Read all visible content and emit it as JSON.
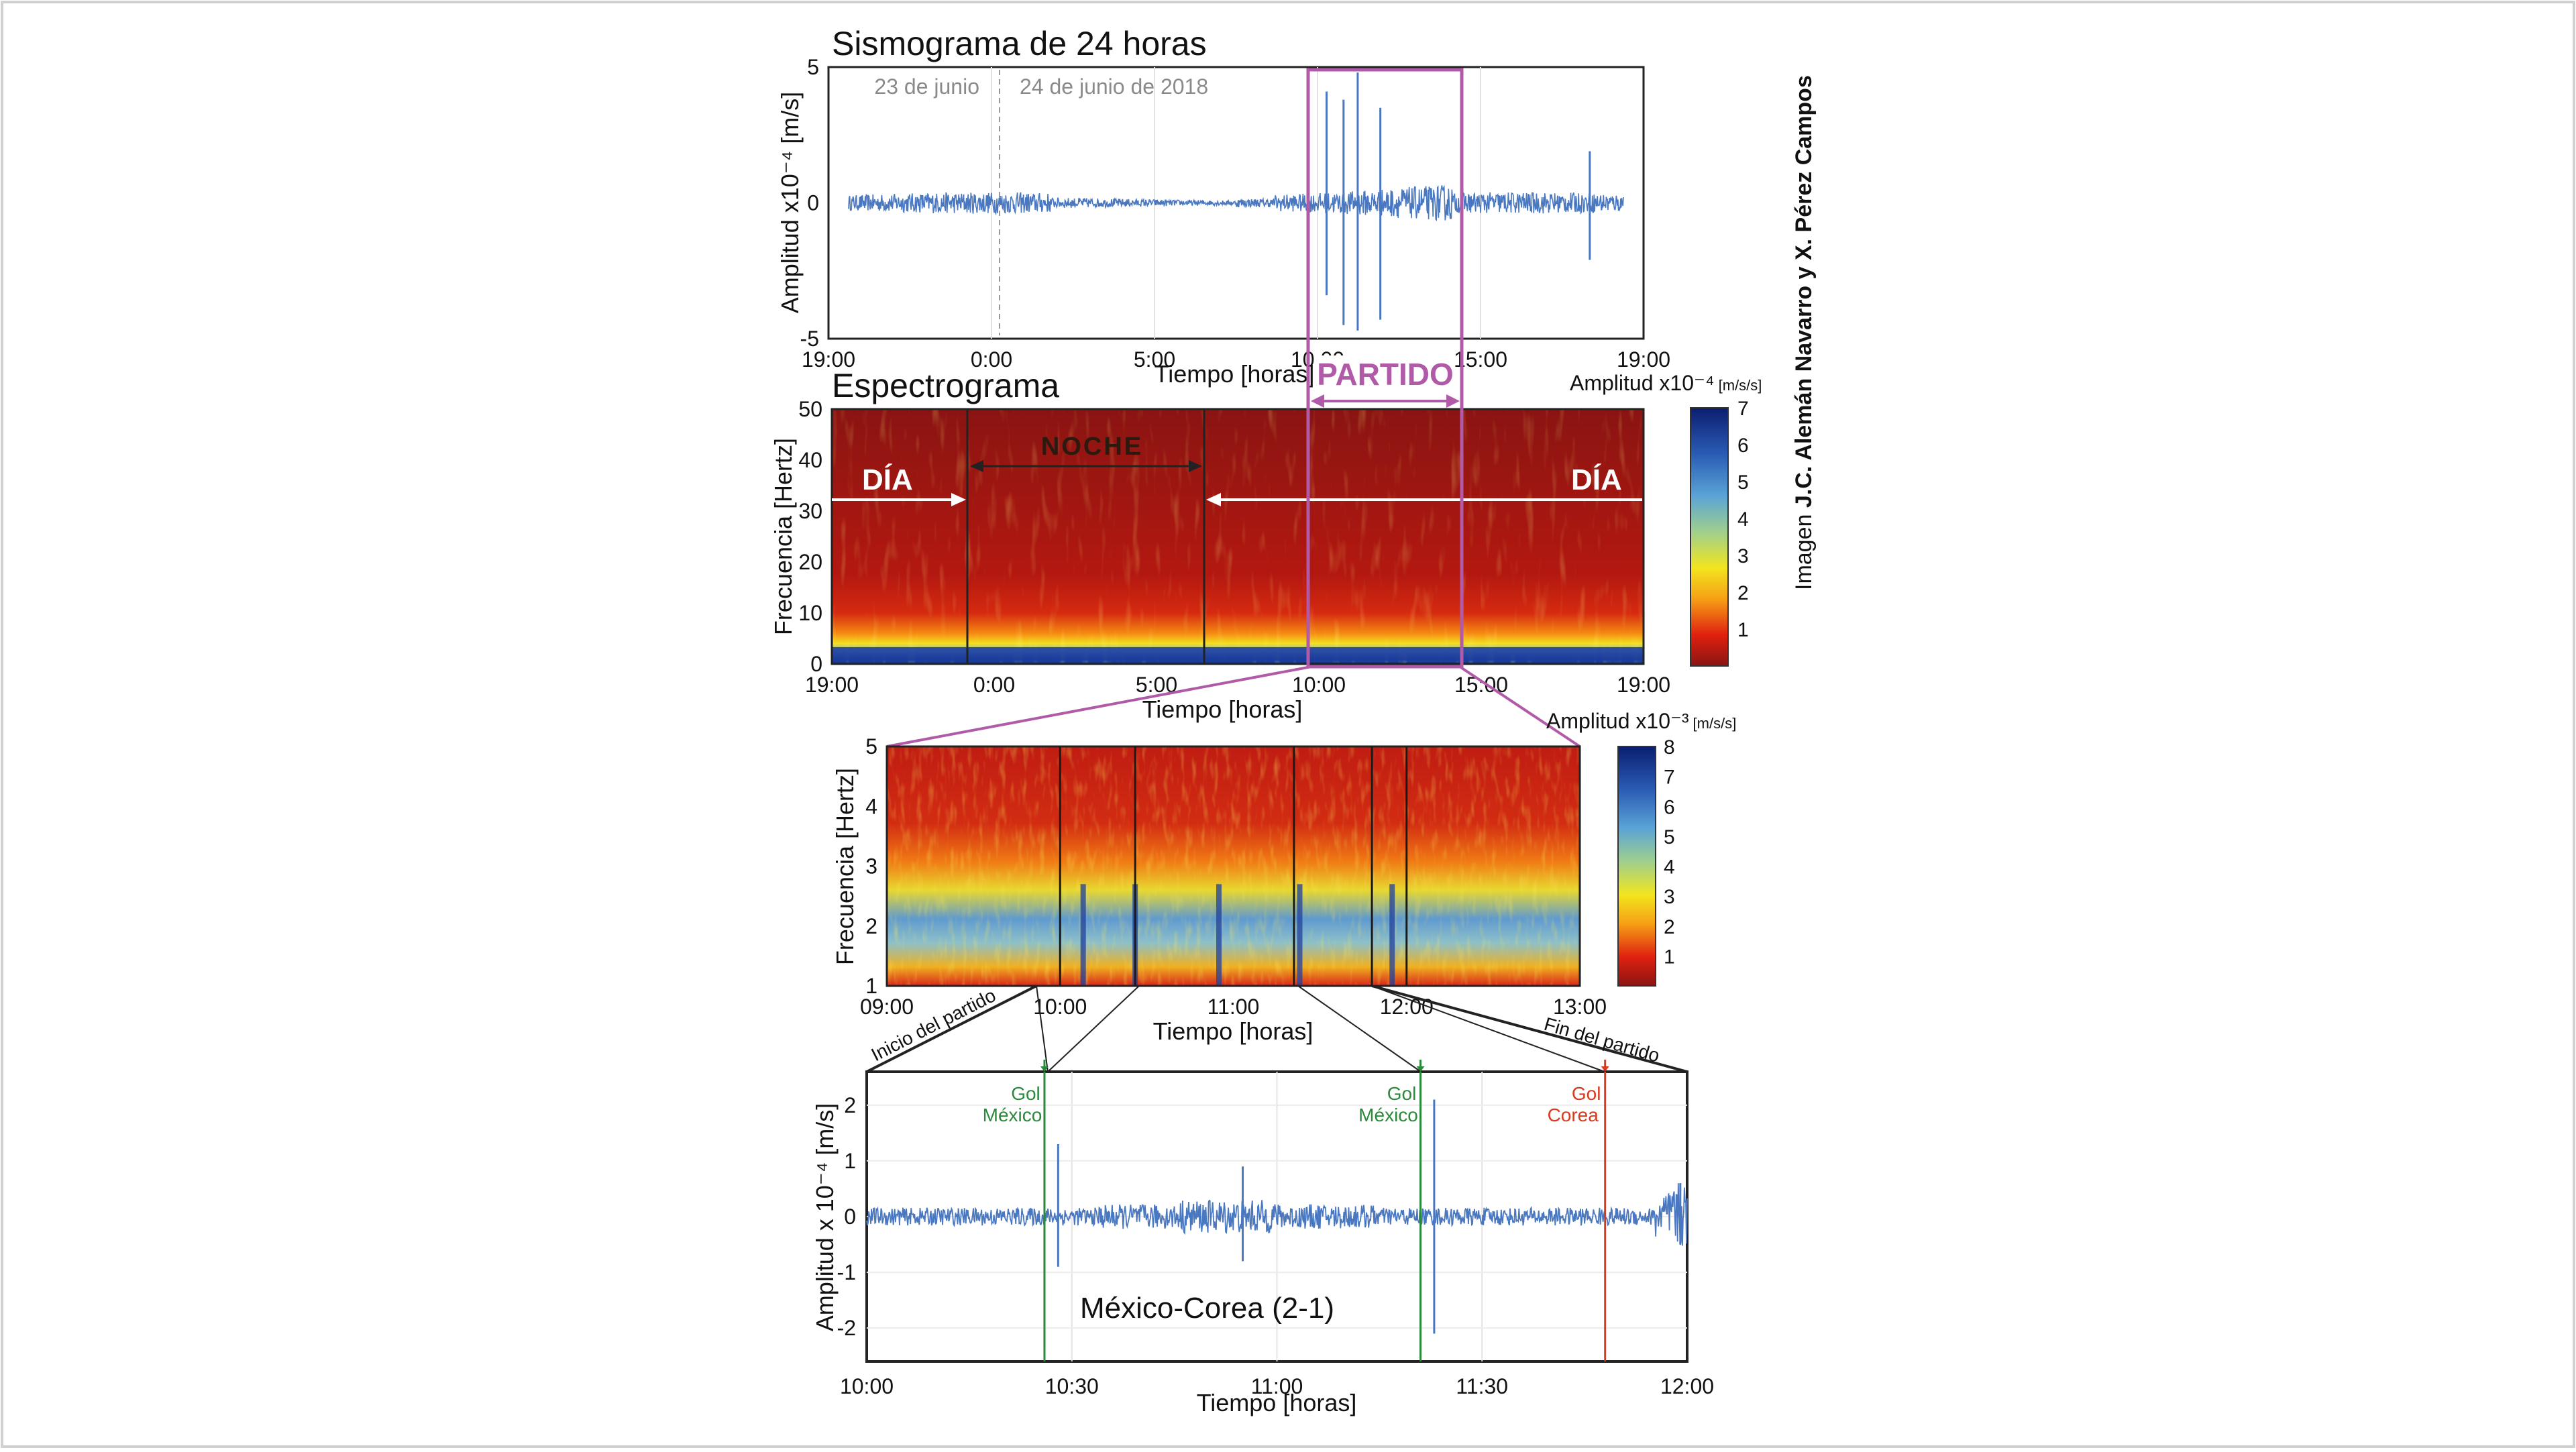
{
  "credit": {
    "prefix": "Imagen",
    "authors": "J.C. Alemán Navarro y X. Pérez Campos"
  },
  "colors": {
    "trace": "#4a78c0",
    "partido": "#b05aa8",
    "gol_mexico": "#2a8a3a",
    "gol_corea": "#d83a20",
    "frame": "#222222"
  },
  "chart_data": [
    {
      "type": "line",
      "title": "Sismograma de 24 horas",
      "xlabel": "Tiempo [horas]",
      "ylabel": "Amplitud x10⁻⁴ [m/s]",
      "xticks": [
        "19:00",
        "0:00",
        "5:00",
        "10:00",
        "15:00",
        "19:00"
      ],
      "yticks": [
        "5",
        "0",
        "-5"
      ],
      "ylim": [
        -5,
        5
      ],
      "annotations": {
        "day1": "23 de junio",
        "day2": "24 de junio de 2018",
        "partido": "PARTIDO"
      },
      "spikes": [
        {
          "x": "9:40",
          "y": [
            -3.4,
            4.1
          ]
        },
        {
          "x": "10:10",
          "y": [
            -4.5,
            3.8
          ]
        },
        {
          "x": "10:35",
          "y": [
            -4.7,
            4.8
          ]
        },
        {
          "x": "11:15",
          "y": [
            -4.3,
            3.5
          ]
        },
        {
          "x": "17:25",
          "y": [
            -2.1,
            1.9
          ]
        }
      ]
    },
    {
      "type": "heatmap",
      "title": "Espectrograma",
      "xlabel": "Tiempo [horas]",
      "ylabel": "Frecuencia [Hertz]",
      "xticks": [
        "19:00",
        "0:00",
        "5:00",
        "10:00",
        "15:00",
        "19:00"
      ],
      "yticks": [
        "50",
        "40",
        "30",
        "20",
        "10",
        "0"
      ],
      "ylim": [
        0,
        50
      ],
      "colorbar": {
        "label": "Amplitud x10⁻⁴",
        "unit": "[m/s/s]",
        "ticks": [
          "7",
          "6",
          "5",
          "4",
          "3",
          "2",
          "1"
        ],
        "range": [
          0,
          7
        ]
      },
      "annotations": {
        "dia_left": "DÍA",
        "noche": "NOCHE",
        "dia_right": "DÍA"
      }
    },
    {
      "type": "heatmap",
      "xlabel": "Tiempo [horas]",
      "ylabel": "Frecuencia [Hertz]",
      "xticks": [
        "09:00",
        "10:00",
        "11:00",
        "12:00",
        "13:00"
      ],
      "yticks": [
        "5",
        "4",
        "3",
        "2",
        "1"
      ],
      "ylim": [
        1,
        5
      ],
      "colorbar": {
        "label": "Amplitud x10⁻³",
        "unit": "[m/s/s]",
        "ticks": [
          "8",
          "7",
          "6",
          "5",
          "4",
          "3",
          "2",
          "1"
        ],
        "range": [
          0,
          8
        ]
      },
      "annotations": {
        "inicio": "Inicio del partido",
        "fin": "Fin del partido"
      }
    },
    {
      "type": "line",
      "title": "México-Corea (2-1)",
      "xlabel": "Tiempo [horas]",
      "ylabel": "Amplitud x 10⁻⁴ [m/s]",
      "xticks": [
        "10:00",
        "10:30",
        "11:00",
        "11:30",
        "12:00"
      ],
      "yticks": [
        "2",
        "1",
        "0",
        "-1",
        "-2"
      ],
      "ylim": [
        -2.6,
        2.6
      ],
      "goals": [
        {
          "line1": "Gol",
          "line2": "México",
          "x": "10:26",
          "color": "gol_mexico"
        },
        {
          "line1": "Gol",
          "line2": "México",
          "x": "11:21",
          "color": "gol_mexico"
        },
        {
          "line1": "Gol",
          "line2": "Corea",
          "x": "11:48",
          "color": "gol_corea"
        }
      ],
      "spikes": [
        {
          "x": "10:26",
          "y": [
            -2.3,
            0.9
          ]
        },
        {
          "x": "10:28",
          "y": [
            -0.9,
            1.3
          ]
        },
        {
          "x": "10:55",
          "y": [
            -0.8,
            0.9
          ]
        },
        {
          "x": "11:23",
          "y": [
            -2.1,
            2.1
          ]
        },
        {
          "x": "11:59",
          "y": [
            -0.5,
            0.6
          ]
        }
      ]
    }
  ]
}
